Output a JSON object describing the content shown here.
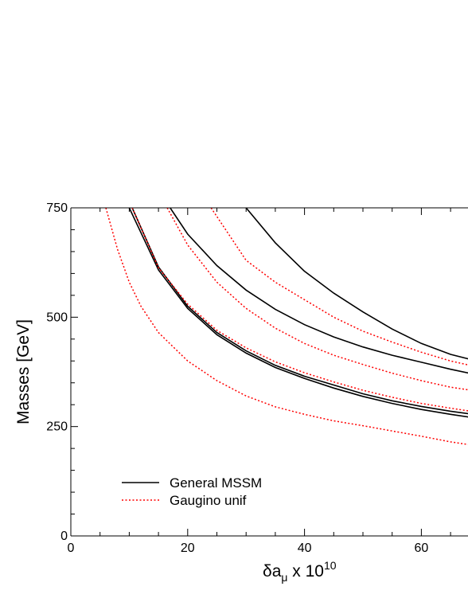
{
  "chart_data": {
    "type": "line",
    "title": "",
    "xlabel": "δa_μ x 10^10",
    "xlabel_parts": {
      "main": "δa",
      "sub": "μ",
      "mid": " x 10",
      "sup": "10"
    },
    "ylabel": "Masses [GeV]",
    "xlim": [
      0,
      70
    ],
    "ylim": [
      0,
      750
    ],
    "x_ticks": [
      0,
      20,
      40,
      60
    ],
    "y_ticks": [
      0,
      250,
      500,
      750
    ],
    "grid": false,
    "legend_placement": "bottom-left",
    "legend": [
      {
        "label": "General MSSM",
        "style": "solid",
        "color": "#000000"
      },
      {
        "label": "Gaugino unif",
        "style": "dotted",
        "color": "#ff0000"
      }
    ],
    "series": [
      {
        "style": "solid",
        "color": "#000000",
        "x": [
          30,
          35,
          40,
          45,
          50,
          55,
          60,
          65,
          70
        ],
        "y": [
          750,
          670,
          605,
          555,
          512,
          473,
          440,
          415,
          398
        ]
      },
      {
        "style": "solid",
        "color": "#000000",
        "x": [
          17,
          20,
          25,
          30,
          35,
          40,
          45,
          50,
          55,
          60,
          65,
          70
        ],
        "y": [
          750,
          690,
          618,
          562,
          518,
          483,
          455,
          432,
          413,
          397,
          381,
          367
        ]
      },
      {
        "style": "solid",
        "color": "#000000",
        "x": [
          10.5,
          15,
          20,
          25,
          30,
          35,
          40,
          45,
          50,
          55,
          60,
          65,
          70
        ],
        "y": [
          750,
          615,
          525,
          465,
          423,
          390,
          365,
          345,
          325,
          309,
          296,
          285,
          276
        ]
      },
      {
        "style": "solid",
        "color": "#000000",
        "x": [
          10,
          15,
          20,
          25,
          30,
          35,
          40,
          45,
          50,
          55,
          60,
          65,
          70
        ],
        "y": [
          750,
          608,
          520,
          460,
          418,
          385,
          360,
          338,
          319,
          303,
          289,
          278,
          268
        ]
      },
      {
        "style": "dotted",
        "color": "#ff0000",
        "x": [
          24,
          30,
          35,
          40,
          45,
          50,
          55,
          60,
          65,
          70
        ],
        "y": [
          750,
          630,
          580,
          540,
          500,
          468,
          443,
          420,
          400,
          385
        ]
      },
      {
        "style": "dotted",
        "color": "#ff0000",
        "x": [
          16.5,
          20,
          25,
          30,
          35,
          40,
          45,
          50,
          55,
          60,
          65,
          70
        ],
        "y": [
          750,
          665,
          580,
          520,
          475,
          440,
          413,
          392,
          372,
          355,
          340,
          330
        ]
      },
      {
        "style": "dotted",
        "color": "#ff0000",
        "x": [
          10.5,
          15,
          20,
          25,
          30,
          35,
          40,
          45,
          50,
          55,
          60,
          65,
          70
        ],
        "y": [
          750,
          613,
          530,
          470,
          430,
          398,
          373,
          352,
          333,
          317,
          303,
          292,
          282
        ]
      },
      {
        "style": "dotted",
        "color": "#ff0000",
        "x": [
          6,
          8,
          10,
          12,
          15,
          20,
          25,
          30,
          35,
          40,
          45,
          50,
          55,
          60,
          65,
          70
        ],
        "y": [
          750,
          655,
          580,
          525,
          465,
          400,
          355,
          320,
          295,
          278,
          263,
          252,
          240,
          228,
          215,
          205
        ]
      }
    ]
  }
}
